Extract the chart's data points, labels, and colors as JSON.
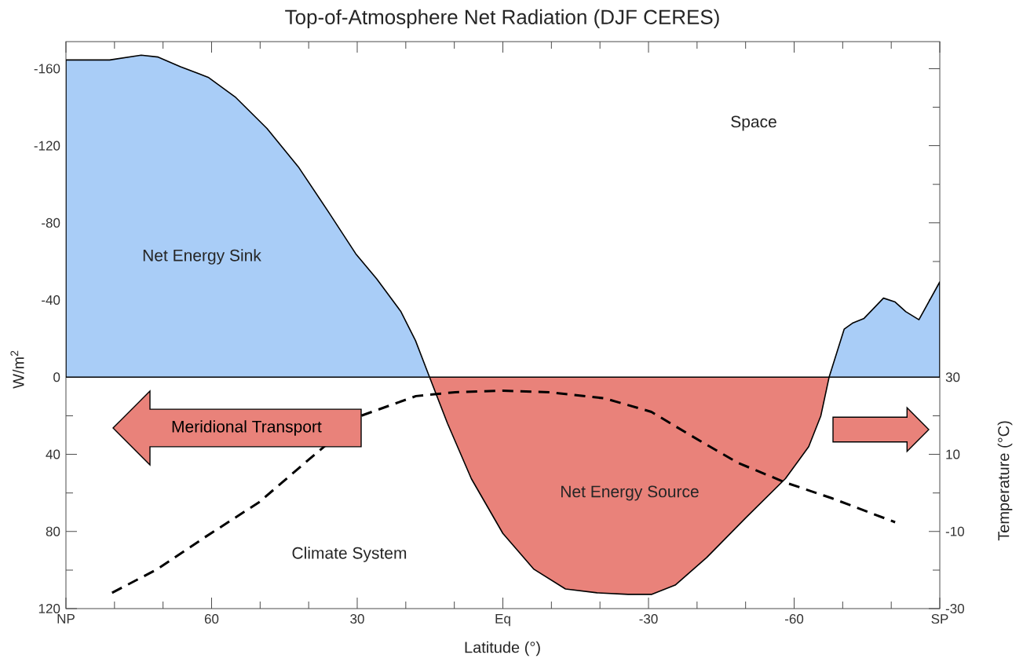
{
  "chart_data": {
    "type": "area",
    "title": "Top-of-Atmosphere Net Radiation (DJF CERES)",
    "xlabel": "Latitude (°)",
    "ylabel": "W/m$^{2}$",
    "y2label": "Temperature (°C)",
    "xlim": [
      90,
      -90
    ],
    "xticks": [
      {
        "value": 90,
        "label": "NP"
      },
      60,
      30,
      {
        "value": 0,
        "label": "Eq"
      },
      -30,
      -60,
      {
        "value": -90,
        "label": "SP"
      }
    ],
    "ylim": [
      120,
      -174
    ],
    "yticks": [
      -160,
      -120,
      -80,
      -40,
      0,
      40,
      80,
      120
    ],
    "y2lim": [
      -30,
      117
    ],
    "y2ticks": [
      -30,
      -10,
      10,
      30
    ],
    "annotations": [
      "Space",
      "Net Energy Sink",
      "Meridional Transport",
      "Net Energy Source",
      "Climate System"
    ],
    "series": [
      {
        "color": "#a9cdf7",
        "x": [
          90,
          81,
          74.5,
          71,
          66.4,
          60.7,
          55,
          48.6,
          42,
          36,
          30.3,
          26,
          21,
          18,
          15.1
        ],
        "values": [
          -164.5,
          -164.5,
          -167,
          -166,
          -161,
          -155.5,
          -145,
          -129,
          -108.6,
          -86,
          -64,
          -51,
          -34,
          -19,
          0
        ]
      },
      {
        "color": "#e9827a",
        "x": [
          15.1,
          11.4,
          6.5,
          0,
          -6.4,
          -12.9,
          -19.4,
          -25.8,
          -30.7,
          -35.5,
          -42,
          -50,
          -58.2,
          -63,
          -65.5,
          -67.2
        ],
        "values": [
          0,
          24,
          52.6,
          81,
          99.6,
          109.8,
          111.8,
          112.6,
          112.6,
          107.8,
          93.5,
          73,
          52.6,
          36,
          20,
          0
        ]
      },
      {
        "color": "#a9cdf7",
        "x": [
          -67.2,
          -70.3,
          -72,
          -74.4,
          -76.5,
          -78.4,
          -80.8,
          -83,
          -85.7,
          -90
        ],
        "values": [
          0,
          -24.9,
          -28,
          -30.5,
          -36,
          -41,
          -39,
          -34,
          -29.8,
          -49.4
        ]
      },
      {
        "type": "line",
        "axis": "y2",
        "color": "#000000",
        "line_style": "dashed",
        "x": [
          80.5,
          71.2,
          61.5,
          50.2,
          38.9,
          29.2,
          17.9,
          9.8,
          0,
          -9.7,
          -21,
          -30.6,
          -38.7,
          -48.4,
          -58.2,
          -67.8,
          -80.8
        ],
        "values": [
          -25.9,
          -19.8,
          -11.6,
          -2.4,
          9.8,
          20,
          25.1,
          26.1,
          26.5,
          26.1,
          24.5,
          21,
          14.9,
          7.8,
          2.7,
          -1.4,
          -7.6
        ]
      }
    ]
  }
}
